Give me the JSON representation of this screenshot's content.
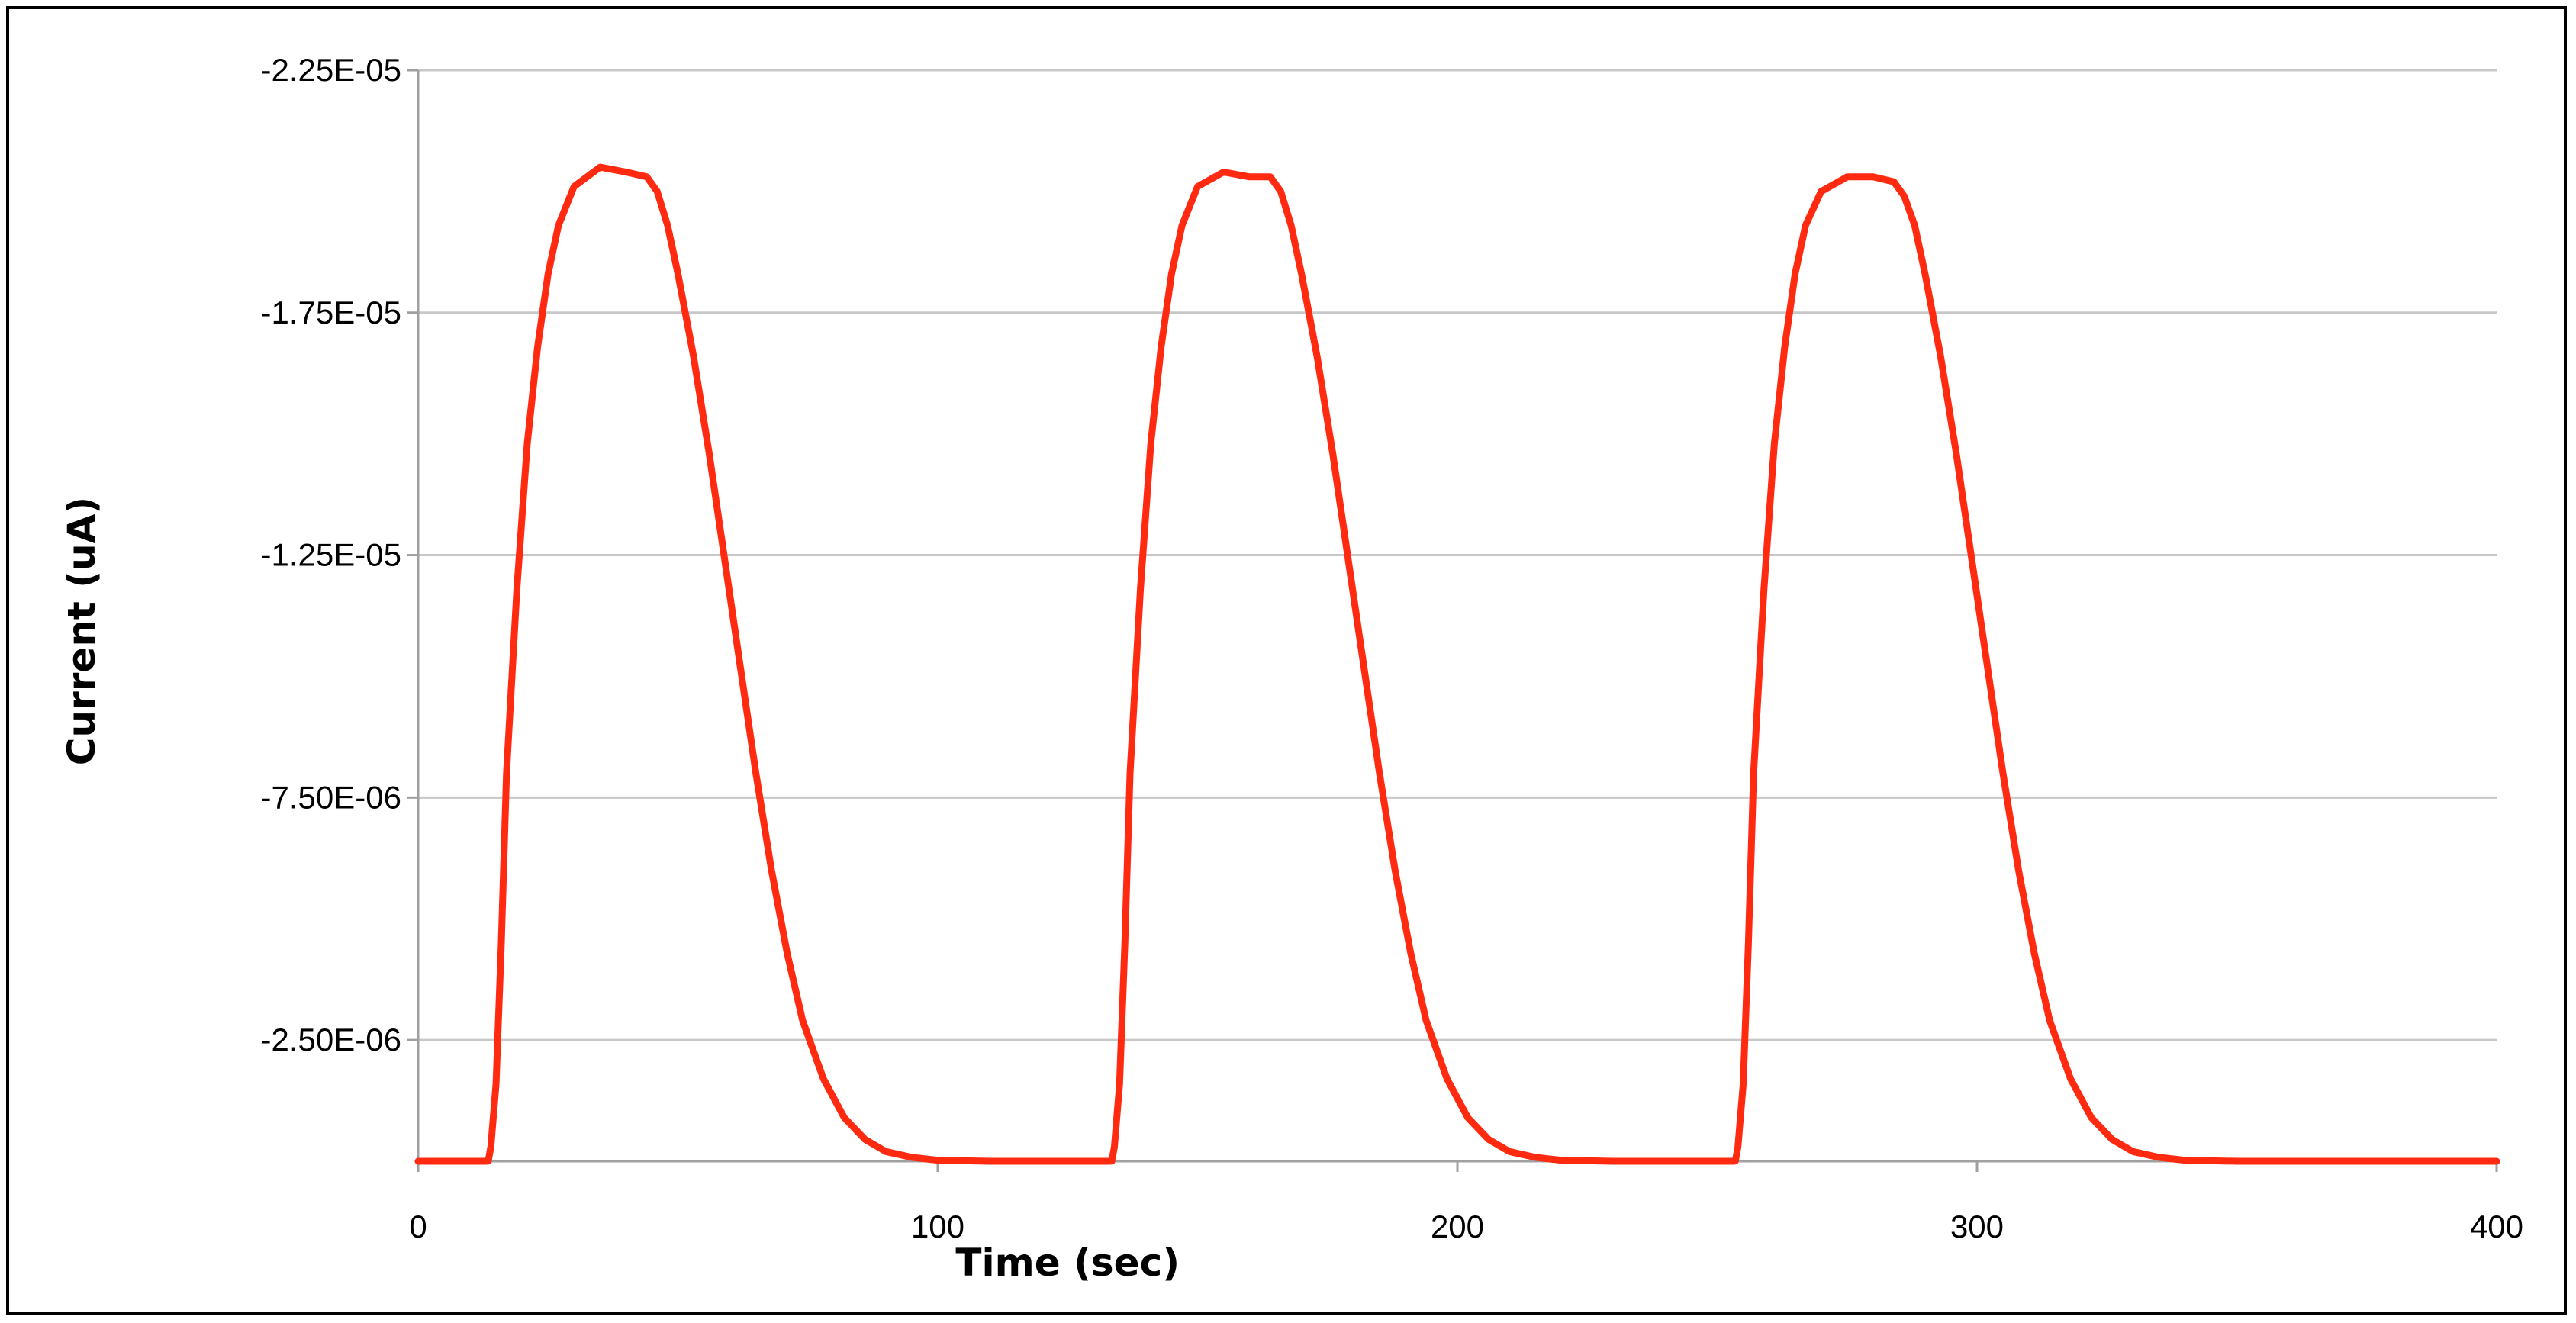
{
  "chart_data": {
    "type": "line",
    "title": "",
    "xlabel": "Time (sec)",
    "ylabel": "Current (uA)",
    "xlim": [
      0,
      400
    ],
    "ylim": [
      0,
      2.25e-05
    ],
    "y_reversed": true,
    "grid": "horizontal",
    "legend": "none",
    "x_ticks": [
      "0",
      "100",
      "200",
      "300",
      "400"
    ],
    "y_ticks": [
      {
        "value": 2.25e-05,
        "label": "-2.25E-05"
      },
      {
        "value": 1.75e-05,
        "label": "-1.75E-05"
      },
      {
        "value": 1.25e-05,
        "label": "-1.25E-05"
      },
      {
        "value": 7.5e-06,
        "label": "-7.50E-06"
      },
      {
        "value": 2.5e-06,
        "label": "-2.50E-06"
      }
    ],
    "series": [
      {
        "color": "#ff2a10",
        "x": [
          0,
          10,
          13,
          13.5,
          14,
          15,
          16,
          17,
          19,
          21,
          23,
          25,
          27,
          30,
          35,
          40,
          44,
          46,
          48,
          50,
          53,
          56,
          59,
          62,
          65,
          68,
          71,
          74,
          78,
          82,
          86,
          90,
          95,
          100,
          110,
          120,
          132,
          133,
          133.5,
          134,
          135,
          136,
          137,
          139,
          141,
          143,
          145,
          147,
          150,
          155,
          160,
          164,
          166,
          168,
          170,
          173,
          176,
          179,
          182,
          185,
          188,
          191,
          194,
          198,
          202,
          206,
          210,
          215,
          220,
          230,
          240,
          252,
          253,
          253.5,
          254,
          255,
          256,
          257,
          259,
          261,
          263,
          265,
          267,
          270,
          275,
          280,
          284,
          286,
          288,
          290,
          293,
          296,
          299,
          302,
          305,
          308,
          311,
          314,
          318,
          322,
          326,
          330,
          335,
          340,
          350,
          360,
          380,
          400
        ],
        "y": [
          0,
          0,
          0,
          3e-09,
          3e-07,
          1.6e-06,
          4.5e-06,
          8e-06,
          1.18e-05,
          1.48e-05,
          1.68e-05,
          1.83e-05,
          1.93e-05,
          2.01e-05,
          2.05e-05,
          2.04e-05,
          2.03e-05,
          2e-05,
          1.93e-05,
          1.83e-05,
          1.66e-05,
          1.46e-05,
          1.24e-05,
          1.02e-05,
          8e-06,
          6e-06,
          4.3e-06,
          2.9e-06,
          1.7e-06,
          9e-07,
          4.5e-07,
          2e-07,
          8e-08,
          2e-08,
          0,
          0,
          0,
          0,
          3e-09,
          3e-07,
          1.6e-06,
          4.5e-06,
          8e-06,
          1.18e-05,
          1.48e-05,
          1.68e-05,
          1.83e-05,
          1.93e-05,
          2.01e-05,
          2.04e-05,
          2.03e-05,
          2.03e-05,
          2e-05,
          1.93e-05,
          1.83e-05,
          1.66e-05,
          1.46e-05,
          1.24e-05,
          1.02e-05,
          8e-06,
          6e-06,
          4.3e-06,
          2.9e-06,
          1.7e-06,
          9e-07,
          4.5e-07,
          2e-07,
          8e-08,
          2e-08,
          0,
          0,
          0,
          0,
          3e-09,
          3e-07,
          1.6e-06,
          4.5e-06,
          8e-06,
          1.18e-05,
          1.48e-05,
          1.68e-05,
          1.83e-05,
          1.93e-05,
          2e-05,
          2.03e-05,
          2.03e-05,
          2.02e-05,
          1.99e-05,
          1.93e-05,
          1.83e-05,
          1.66e-05,
          1.46e-05,
          1.24e-05,
          1.02e-05,
          8e-06,
          6e-06,
          4.3e-06,
          2.9e-06,
          1.7e-06,
          9e-07,
          4.5e-07,
          2e-07,
          8e-08,
          2e-08,
          0,
          0,
          0,
          0
        ]
      }
    ]
  }
}
